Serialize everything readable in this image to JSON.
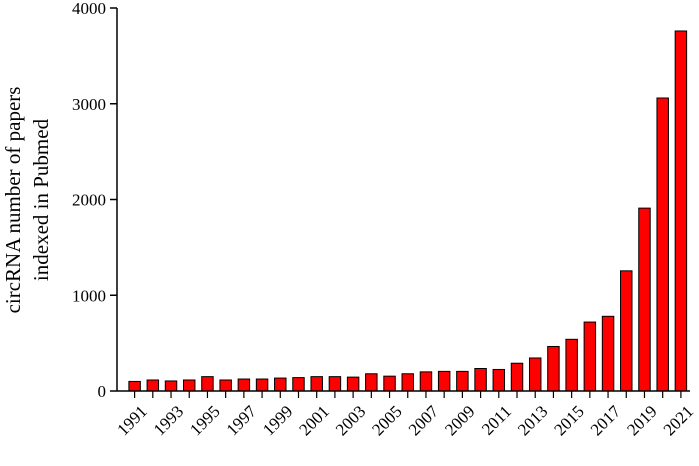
{
  "chart_data": {
    "type": "bar",
    "ylabel_lines": [
      "circRNA number of papers",
      "indexed in Pubmed"
    ],
    "ylim": [
      0,
      4000
    ],
    "yticks": [
      0,
      1000,
      2000,
      3000,
      4000
    ],
    "grid": false,
    "bar_color": "#ff0000",
    "bar_edge_color": "#000000",
    "categories": [
      "1991",
      "1992",
      "1993",
      "1994",
      "1995",
      "1996",
      "1997",
      "1998",
      "1999",
      "2000",
      "2001",
      "2002",
      "2003",
      "2004",
      "2005",
      "2006",
      "2007",
      "2008",
      "2009",
      "2010",
      "2011",
      "2012",
      "2013",
      "2014",
      "2015",
      "2016",
      "2017",
      "2018",
      "2019",
      "2020",
      "2021"
    ],
    "tick_labels": [
      "1991",
      "1993",
      "1995",
      "1997",
      "1999",
      "2001",
      "2003",
      "2005",
      "2007",
      "2009",
      "2011",
      "2013",
      "2015",
      "2017",
      "2019",
      "2021"
    ],
    "values": [
      100,
      115,
      105,
      115,
      150,
      115,
      125,
      125,
      135,
      140,
      150,
      150,
      145,
      180,
      155,
      180,
      200,
      205,
      205,
      235,
      225,
      290,
      345,
      465,
      540,
      720,
      780,
      1255,
      1910,
      3060,
      3760
    ]
  }
}
